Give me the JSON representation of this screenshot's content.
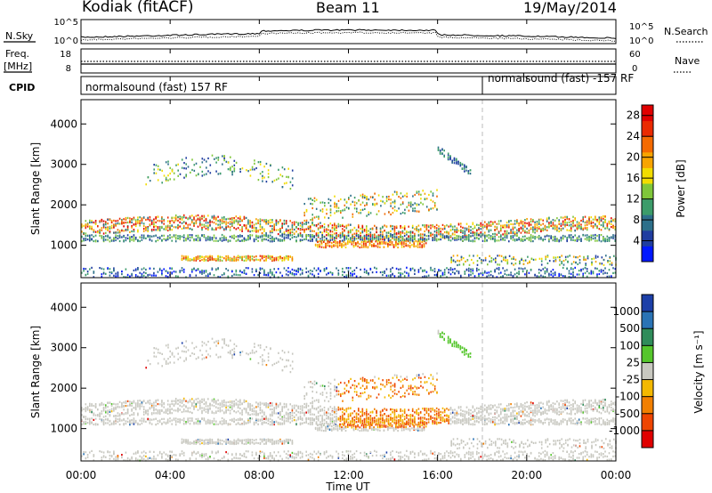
{
  "header": {
    "radar_title": "Kodiak (fitACF)",
    "beam_title": "Beam 11",
    "date_title": "19/May/2014"
  },
  "top_panels": {
    "nsky_label": "N.Sky",
    "nsearch_label": "N.Search",
    "freq_label_line1": "Freq.",
    "freq_label_line2": "[MHz]",
    "nave_label": "Nave",
    "cpid_label": "CPID",
    "noise_ticks": [
      "10^5",
      "10^0"
    ],
    "freq_ticks": [
      "18",
      "8"
    ],
    "nave_ticks": [
      "60",
      "0"
    ],
    "cpid_segments": [
      {
        "label": "normalsound (fast) 157 RF",
        "start_hour": 0
      },
      {
        "label": "normalsound (fast) -157 RF",
        "start_hour": 18
      }
    ]
  },
  "colors": {
    "power": [
      "#0018ff",
      "#1f3da0",
      "#2d6f8a",
      "#3c9c6a",
      "#7fc63a",
      "#f2dc00",
      "#f7a400",
      "#f46a00",
      "#ea2a00",
      "#e00000"
    ],
    "velocity": [
      "#1c3fa8",
      "#2a73b5",
      "#2f8c5a",
      "#55c62c",
      "#c8c8c0",
      "#f3b800",
      "#f17f00",
      "#ee4500",
      "#e00000"
    ],
    "ground_scatter": "#c8c8c0"
  },
  "chart_data": [
    {
      "type": "heatmap",
      "title": "",
      "xlabel": "Time UT",
      "ylabel": "Slant Range [km]",
      "xlim_hours": [
        0,
        24
      ],
      "ylim_km": [
        200,
        4600
      ],
      "x_ticks": [
        "00:00",
        "04:00",
        "08:00",
        "12:00",
        "16:00",
        "20:00",
        "00:00"
      ],
      "y_ticks": [
        1000,
        2000,
        3000,
        4000
      ],
      "colorbar": {
        "label": "Power [dB]",
        "ticks": [
          4,
          8,
          12,
          16,
          20,
          24,
          28
        ],
        "range": [
          0,
          30
        ]
      }
    },
    {
      "type": "heatmap",
      "title": "",
      "xlabel": "Time UT",
      "ylabel": "Slant Range [km]",
      "xlim_hours": [
        0,
        24
      ],
      "ylim_km": [
        200,
        4600
      ],
      "x_ticks": [
        "00:00",
        "04:00",
        "08:00",
        "12:00",
        "16:00",
        "20:00",
        "00:00"
      ],
      "y_ticks": [
        1000,
        2000,
        3000,
        4000
      ],
      "colorbar": {
        "label": "Velocity [m s⁻¹]",
        "ticks": [
          "1000",
          "500",
          "100",
          "25",
          "-25",
          "-100",
          "-500",
          "-1000"
        ]
      }
    }
  ]
}
